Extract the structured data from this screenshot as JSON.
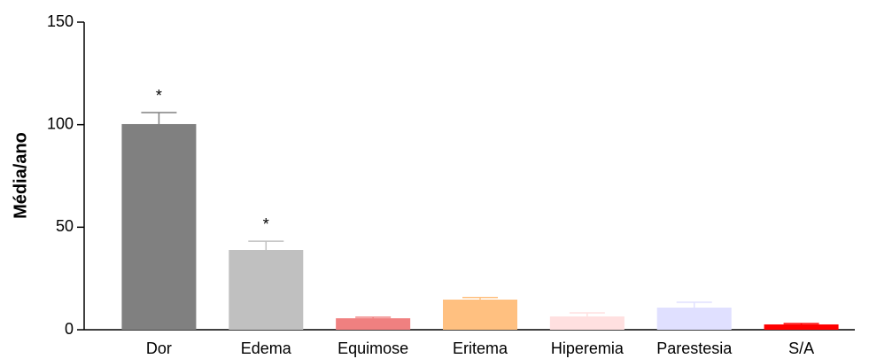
{
  "chart_data": {
    "type": "bar",
    "ylabel": "Média/ano",
    "categories": [
      "Dor",
      "Edema",
      "Equimose",
      "Eritema",
      "Hiperemia",
      "Parestesia",
      "S/A"
    ],
    "values": [
      100.3,
      38.9,
      5.6,
      14.7,
      6.5,
      10.8,
      2.6
    ],
    "errors": [
      5.6,
      4.3,
      0.5,
      1.0,
      1.7,
      2.6,
      0.4
    ],
    "colors": [
      "#808080",
      "#c0c0c0",
      "#f08080",
      "#ffc080",
      "#ffe0e0",
      "#e0e0ff",
      "#ff0000"
    ],
    "annotations": [
      "*",
      "*",
      null,
      null,
      null,
      null,
      null
    ],
    "ylim": [
      0,
      150
    ],
    "yticks": [
      0,
      50,
      100,
      150
    ]
  }
}
